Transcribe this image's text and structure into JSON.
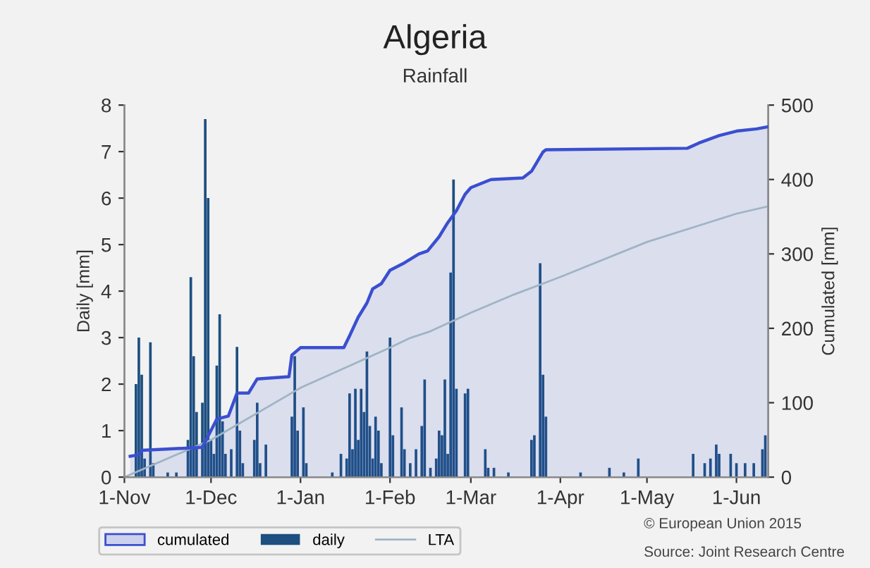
{
  "chart_data": {
    "type": "bar",
    "title": "Algeria",
    "subtitle": "Rainfall",
    "ylabel": "Daily [mm]",
    "y2label": "Cumulated [mm]",
    "xlim": [
      "2014-11-01",
      "2015-06-12"
    ],
    "xticks": [
      {
        "value": "2014-11-01",
        "label": "1-Nov"
      },
      {
        "value": "2014-12-01",
        "label": "1-Dec"
      },
      {
        "value": "2015-01-01",
        "label": "1-Jan"
      },
      {
        "value": "2015-02-01",
        "label": "1-Feb"
      },
      {
        "value": "2015-03-01",
        "label": "1-Mar"
      },
      {
        "value": "2015-04-01",
        "label": "1-Apr"
      },
      {
        "value": "2015-05-01",
        "label": "1-May"
      },
      {
        "value": "2015-06-01",
        "label": "1-Jun"
      }
    ],
    "ylim": [
      0,
      8
    ],
    "yticks": [
      0,
      1,
      2,
      3,
      4,
      5,
      6,
      7,
      8
    ],
    "y2lim": [
      0,
      500
    ],
    "y2ticks": [
      0,
      100,
      200,
      300,
      400,
      500
    ],
    "grid": false,
    "legend": "bottom left",
    "annotations": [
      "© European Union 2015",
      "Source: Joint Research Centre"
    ],
    "series": [
      {
        "name": "cumulated",
        "type": "area",
        "axis": "y2",
        "color": "#3a4fd0",
        "x": [
          "2014-11-03",
          "2014-11-06",
          "2014-11-07",
          "2014-11-28",
          "2014-12-03",
          "2014-12-07",
          "2014-12-10",
          "2014-12-14",
          "2014-12-17",
          "2014-12-28",
          "2014-12-29",
          "2015-01-01",
          "2015-01-16",
          "2015-01-18",
          "2015-01-21",
          "2015-01-24",
          "2015-01-26",
          "2015-01-29",
          "2015-02-01",
          "2015-02-06",
          "2015-02-11",
          "2015-02-14",
          "2015-02-18",
          "2015-02-21",
          "2015-02-24",
          "2015-02-27",
          "2015-03-01",
          "2015-03-08",
          "2015-03-19",
          "2015-03-22",
          "2015-03-26",
          "2015-03-27",
          "2015-05-15",
          "2015-05-19",
          "2015-05-26",
          "2015-06-01",
          "2015-06-08",
          "2015-06-12"
        ],
        "values": [
          28,
          30,
          36,
          40,
          78,
          82,
          113,
          113,
          132,
          135,
          164,
          174,
          174,
          190,
          215,
          234,
          253,
          260,
          278,
          288,
          300,
          304,
          323,
          342,
          358,
          380,
          389,
          400,
          402,
          411,
          437,
          440,
          442,
          449,
          459,
          465,
          468,
          471
        ]
      },
      {
        "name": "daily",
        "color": "#1d4f80",
        "x": [
          "2014-11-05",
          "2014-11-06",
          "2014-11-07",
          "2014-11-08",
          "2014-11-10",
          "2014-11-11",
          "2014-11-16",
          "2014-11-19",
          "2014-11-23",
          "2014-11-24",
          "2014-11-25",
          "2014-11-26",
          "2014-11-28",
          "2014-11-29",
          "2014-11-30",
          "2014-12-01",
          "2014-12-02",
          "2014-12-03",
          "2014-12-04",
          "2014-12-05",
          "2014-12-06",
          "2014-12-08",
          "2014-12-10",
          "2014-12-11",
          "2014-12-12",
          "2014-12-16",
          "2014-12-17",
          "2014-12-18",
          "2014-12-20",
          "2014-12-29",
          "2014-12-30",
          "2014-12-31",
          "2015-01-02",
          "2015-01-03",
          "2015-01-12",
          "2015-01-15",
          "2015-01-17",
          "2015-01-18",
          "2015-01-19",
          "2015-01-20",
          "2015-01-21",
          "2015-01-22",
          "2015-01-23",
          "2015-01-24",
          "2015-01-25",
          "2015-01-26",
          "2015-01-27",
          "2015-01-28",
          "2015-01-29",
          "2015-02-01",
          "2015-02-02",
          "2015-02-05",
          "2015-02-06",
          "2015-02-08",
          "2015-02-10",
          "2015-02-12",
          "2015-02-13",
          "2015-02-15",
          "2015-02-17",
          "2015-02-18",
          "2015-02-19",
          "2015-02-20",
          "2015-02-21",
          "2015-02-22",
          "2015-02-23",
          "2015-02-24",
          "2015-02-27",
          "2015-02-28",
          "2015-03-06",
          "2015-03-07",
          "2015-03-09",
          "2015-03-14",
          "2015-03-22",
          "2015-03-23",
          "2015-03-25",
          "2015-03-26",
          "2015-03-27",
          "2015-04-08",
          "2015-04-18",
          "2015-04-23",
          "2015-04-28",
          "2015-05-17",
          "2015-05-21",
          "2015-05-23",
          "2015-05-25",
          "2015-05-26",
          "2015-05-30",
          "2015-06-01",
          "2015-06-04",
          "2015-06-07",
          "2015-06-10",
          "2015-06-11"
        ],
        "values": [
          2.0,
          3.0,
          2.2,
          0.4,
          2.9,
          0.3,
          0.1,
          0.1,
          0.8,
          4.3,
          2.6,
          1.4,
          1.6,
          7.7,
          6.0,
          0.8,
          0.5,
          2.4,
          3.5,
          1.2,
          0.5,
          0.6,
          2.8,
          1.0,
          0.3,
          0.8,
          1.6,
          0.3,
          0.7,
          1.3,
          2.6,
          1.0,
          1.5,
          0.3,
          0.1,
          0.5,
          0.4,
          1.8,
          0.6,
          1.9,
          0.8,
          1.9,
          1.4,
          2.7,
          1.1,
          0.4,
          1.3,
          1.0,
          0.3,
          3.0,
          0.9,
          1.5,
          0.6,
          0.3,
          0.6,
          1.1,
          2.1,
          0.2,
          0.4,
          1.0,
          0.9,
          2.1,
          0.5,
          4.4,
          6.4,
          1.9,
          1.8,
          1.9,
          0.6,
          0.2,
          0.2,
          0.1,
          0.8,
          0.9,
          4.6,
          2.2,
          1.3,
          0.1,
          0.2,
          0.1,
          0.4,
          0.5,
          0.3,
          0.4,
          0.7,
          0.5,
          0.5,
          0.3,
          0.3,
          0.3,
          0.6,
          0.9
        ]
      },
      {
        "name": "LTA",
        "type": "line",
        "axis": "y2",
        "color": "#9fb4c4",
        "x": [
          "2014-11-01",
          "2014-12-01",
          "2015-01-01",
          "2015-02-01",
          "2015-02-08",
          "2015-02-15",
          "2015-03-01",
          "2015-03-15",
          "2015-04-01",
          "2015-05-01",
          "2015-06-01",
          "2015-06-12"
        ],
        "values": [
          0,
          50,
          120,
          174,
          187,
          196,
          221,
          244,
          269,
          316,
          354,
          364
        ]
      }
    ]
  }
}
